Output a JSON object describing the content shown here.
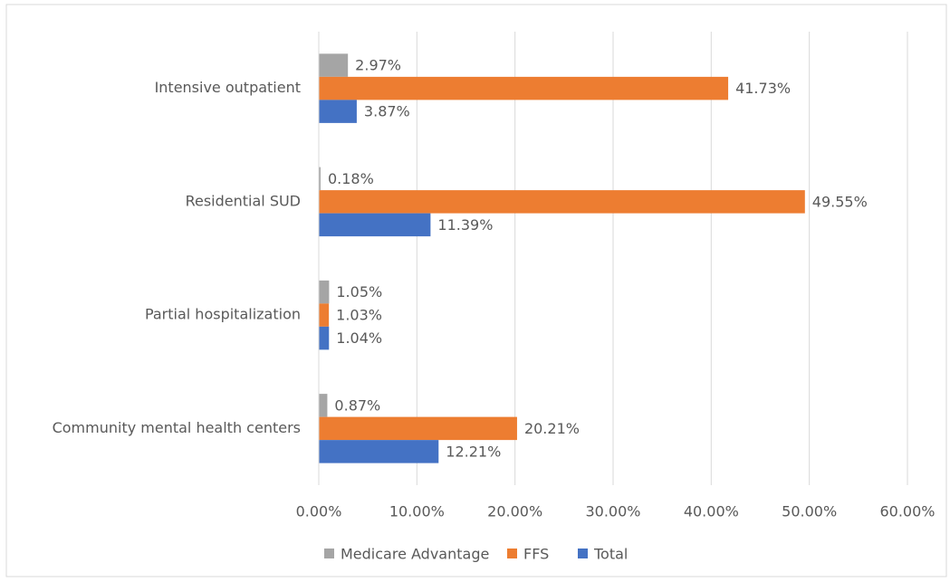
{
  "chart_data": {
    "type": "hbar",
    "categories": [
      "Intensive outpatient",
      "Residential SUD",
      "Partial hospitalization",
      "Community mental health centers"
    ],
    "series": [
      {
        "name": "Medicare Advantage",
        "color": "#a5a5a5",
        "values": [
          2.97,
          0.18,
          1.05,
          0.87
        ],
        "value_labels": [
          "2.97%",
          "0.18%",
          "1.05%",
          "0.87%"
        ]
      },
      {
        "name": "FFS",
        "color": "#ed7d31",
        "values": [
          41.73,
          49.55,
          1.03,
          20.21
        ],
        "value_labels": [
          "41.73%",
          "49.55%",
          "1.03%",
          "20.21%"
        ]
      },
      {
        "name": "Total",
        "color": "#4472c4",
        "values": [
          3.87,
          11.39,
          1.04,
          12.21
        ],
        "value_labels": [
          "3.87%",
          "11.39%",
          "1.04%",
          "12.21%"
        ]
      }
    ],
    "xlim": [
      0,
      60
    ],
    "xticks": [
      {
        "value": 0,
        "label": "0.00%"
      },
      {
        "value": 10,
        "label": "10.00%"
      },
      {
        "value": 20,
        "label": "20.00%"
      },
      {
        "value": 30,
        "label": "30.00%"
      },
      {
        "value": 40,
        "label": "40.00%"
      },
      {
        "value": 50,
        "label": "50.00%"
      },
      {
        "value": 60,
        "label": "60.00%"
      }
    ],
    "grid": true,
    "legend": "bottom"
  }
}
